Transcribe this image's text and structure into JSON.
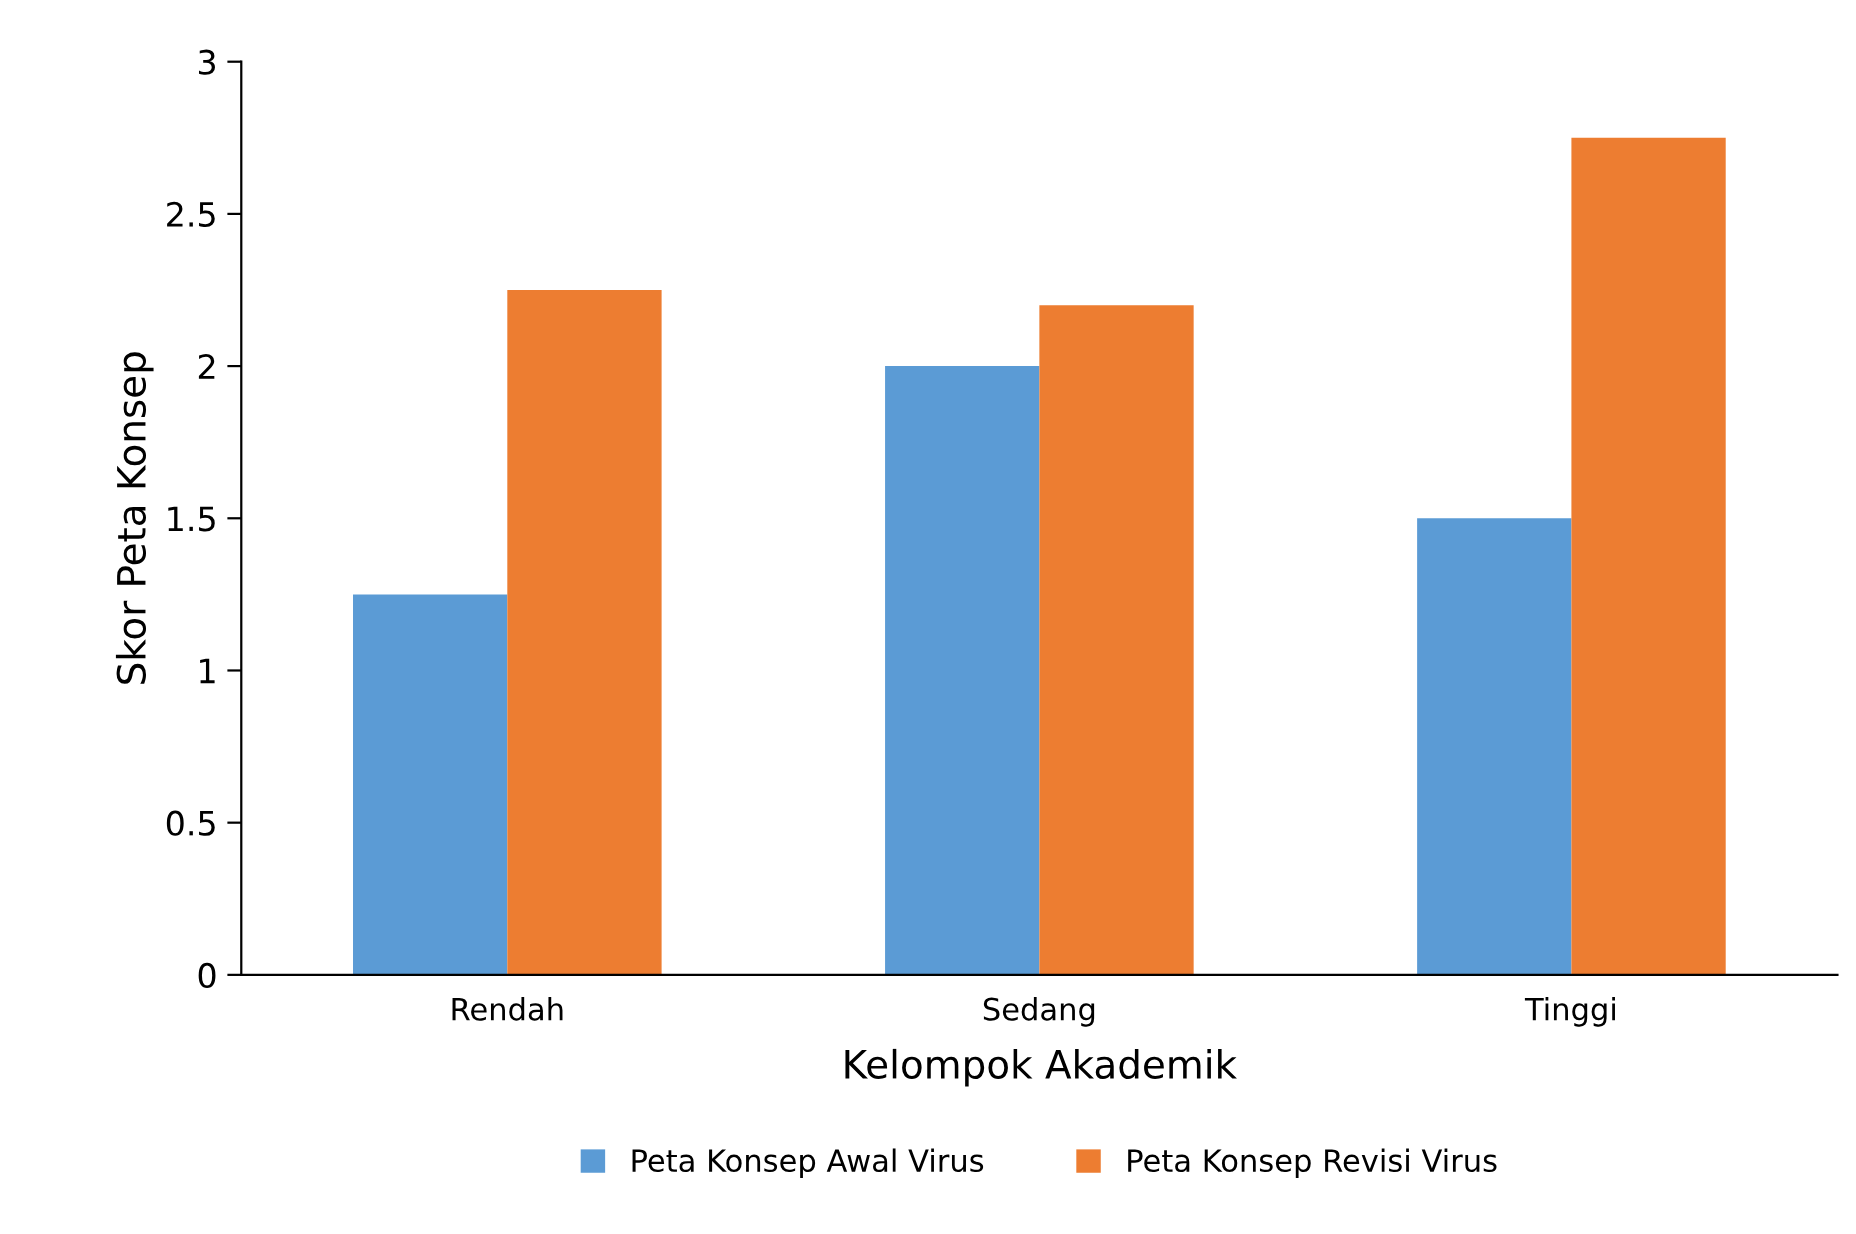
{
  "chart_data": {
    "type": "bar",
    "xlabel": "Kelompok Akademik",
    "ylabel": "Skor Peta Konsep",
    "categories": [
      "Rendah",
      "Sedang",
      "Tinggi"
    ],
    "series": [
      {
        "name": "Peta Konsep Awal Virus",
        "color": "#5b9bd5",
        "values": [
          1.25,
          2.0,
          1.5
        ]
      },
      {
        "name": "Peta Konsep Revisi Virus",
        "color": "#ed7d31",
        "values": [
          2.25,
          2.2,
          2.75
        ]
      }
    ],
    "ylim": [
      0,
      3
    ],
    "yticks": [
      0,
      0.5,
      1,
      1.5,
      2,
      2.5,
      3
    ],
    "grid": false,
    "legend": "bottom"
  }
}
